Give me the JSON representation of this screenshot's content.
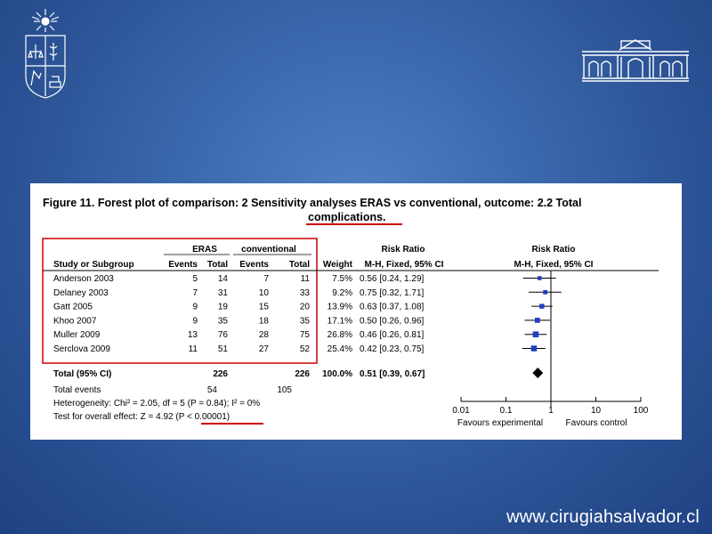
{
  "site": {
    "url": "www.cirugiahsalvador.cl"
  },
  "figure": {
    "title_line1": "Figure 11.   Forest plot of comparison: 2 Sensitivity analyses ERAS vs conventional, outcome: 2.2 Total",
    "title_line2": "complications."
  },
  "table": {
    "group_headers": {
      "eras": "ERAS",
      "conventional": "conventional",
      "rr_left": "Risk Ratio",
      "rr_right": "Risk Ratio"
    },
    "column_headers": {
      "study": "Study or Subgroup",
      "eras_events": "Events",
      "eras_total": "Total",
      "conv_events": "Events",
      "conv_total": "Total",
      "weight": "Weight",
      "method_left": "M-H, Fixed, 95% CI",
      "method_right": "M-H, Fixed, 95% CI"
    },
    "total_row": {
      "label": "Total (95% CI)",
      "eras_total": "226",
      "conv_total": "226",
      "weight": "100.0%",
      "ci_text": "0.51 [0.39, 0.67]"
    },
    "events_row": {
      "label": "Total events",
      "eras": "54",
      "conv": "105"
    },
    "heterogeneity": "Heterogeneity: Chi² = 2.05, df = 5 (P = 0.84); I² = 0%",
    "overall_effect_prefix": "Test for overall effect: Z = 4.92 ",
    "overall_effect_p": "(P < 0.00001)",
    "favours_left": "Favours experimental",
    "favours_right": "Favours control"
  },
  "chart_data": {
    "type": "forest",
    "scale": "log",
    "xlim": [
      0.01,
      100
    ],
    "ticks": [
      0.01,
      0.1,
      1,
      10,
      100
    ],
    "tick_labels": [
      "0.01",
      "0.1",
      "1",
      "10",
      "100"
    ],
    "studies": [
      {
        "name": "Anderson 2003",
        "eras_events": "5",
        "eras_total": "14",
        "conv_events": "7",
        "conv_total": "11",
        "weight": "7.5%",
        "rr": 0.56,
        "lo": 0.24,
        "hi": 1.29,
        "ci_text": "0.56 [0.24, 1.29]"
      },
      {
        "name": "Delaney 2003",
        "eras_events": "7",
        "eras_total": "31",
        "conv_events": "10",
        "conv_total": "33",
        "weight": "9.2%",
        "rr": 0.75,
        "lo": 0.32,
        "hi": 1.71,
        "ci_text": "0.75 [0.32, 1.71]"
      },
      {
        "name": "Gatt 2005",
        "eras_events": "9",
        "eras_total": "19",
        "conv_events": "15",
        "conv_total": "20",
        "weight": "13.9%",
        "rr": 0.63,
        "lo": 0.37,
        "hi": 1.08,
        "ci_text": "0.63 [0.37, 1.08]"
      },
      {
        "name": "Khoo 2007",
        "eras_events": "9",
        "eras_total": "35",
        "conv_events": "18",
        "conv_total": "35",
        "weight": "17.1%",
        "rr": 0.5,
        "lo": 0.26,
        "hi": 0.96,
        "ci_text": "0.50 [0.26, 0.96]"
      },
      {
        "name": "Muller 2009",
        "eras_events": "13",
        "eras_total": "76",
        "conv_events": "28",
        "conv_total": "75",
        "weight": "26.8%",
        "rr": 0.46,
        "lo": 0.26,
        "hi": 0.81,
        "ci_text": "0.46 [0.26, 0.81]"
      },
      {
        "name": "Serclova 2009",
        "eras_events": "11",
        "eras_total": "51",
        "conv_events": "27",
        "conv_total": "52",
        "weight": "25.4%",
        "rr": 0.42,
        "lo": 0.23,
        "hi": 0.75,
        "ci_text": "0.42 [0.23, 0.75]"
      }
    ],
    "pooled": {
      "rr": 0.51,
      "lo": 0.39,
      "hi": 0.67
    }
  },
  "colors": {
    "background": "#2f5a9e",
    "marker": "#1f3fbf",
    "highlight": "#cc0000"
  }
}
